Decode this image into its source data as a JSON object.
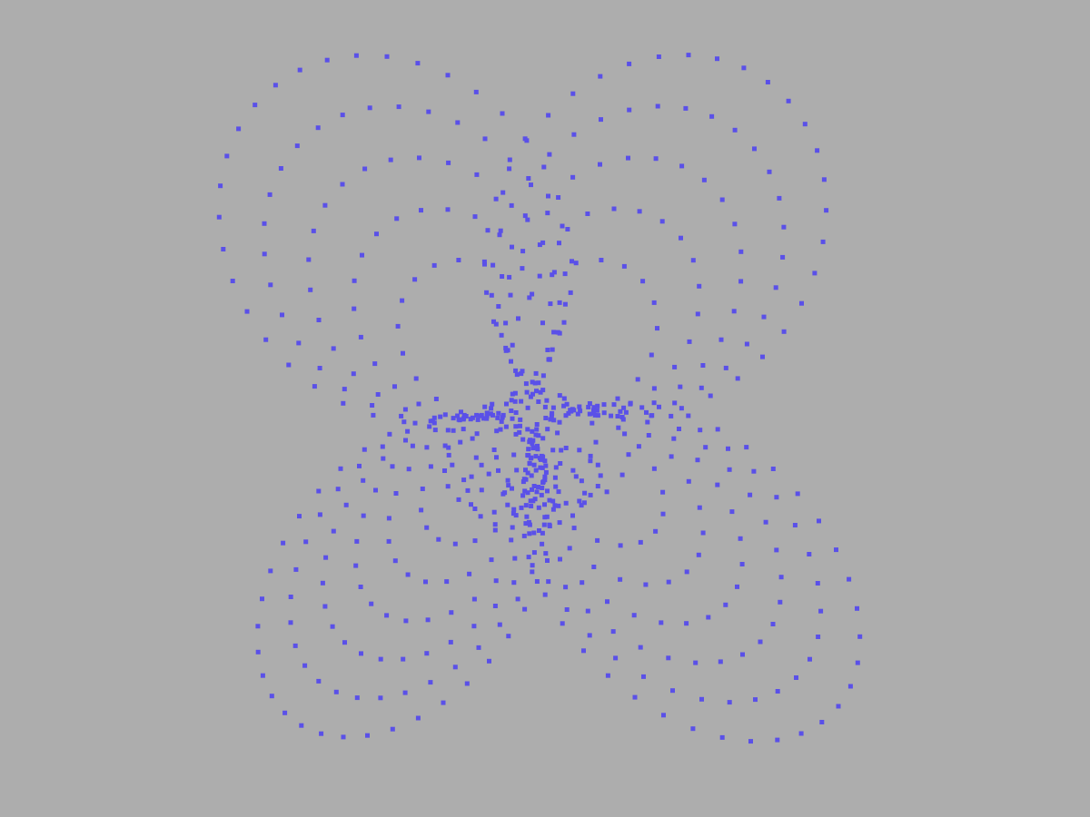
{
  "colors": {
    "background": "#adadad",
    "dot": "#5a50e8"
  },
  "pattern": {
    "description_free": true,
    "lobes": [
      {
        "name": "upper-left",
        "orientation": "up-left"
      },
      {
        "name": "upper-right",
        "orientation": "up-right"
      },
      {
        "name": "lower-left",
        "orientation": "down-left"
      },
      {
        "name": "lower-right",
        "orientation": "down-right"
      }
    ]
  }
}
